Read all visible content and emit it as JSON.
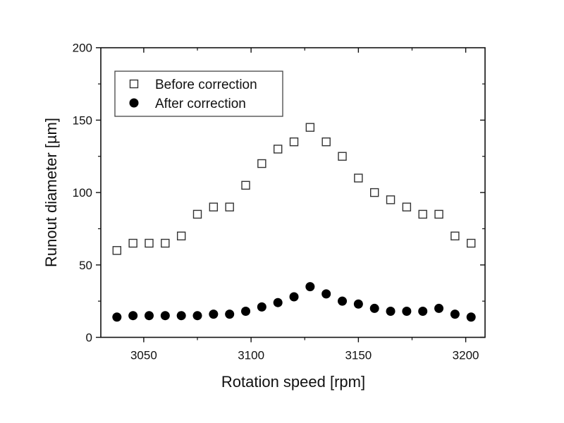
{
  "chart_data": {
    "type": "scatter",
    "title": "",
    "xlabel": "Rotation speed [rpm]",
    "ylabel": "Runout diameter [µm]",
    "xlim": [
      3030,
      3209
    ],
    "ylim": [
      0,
      200
    ],
    "xticks": [
      3050,
      3100,
      3150,
      3200
    ],
    "xtick_labels": [
      "3050",
      "3100",
      "3150",
      "3200"
    ],
    "xminor": [
      3075,
      3125,
      3175
    ],
    "yticks": [
      0,
      50,
      100,
      150,
      200
    ],
    "ytick_labels": [
      "0",
      "50",
      "100",
      "150",
      "200"
    ],
    "yminor": [
      25,
      75,
      125,
      175
    ],
    "grid": false,
    "legend": {
      "position": "top-left",
      "boxed": true
    },
    "x": [
      3037.5,
      3045,
      3052.5,
      3060,
      3067.5,
      3075,
      3082.5,
      3090,
      3097.5,
      3105,
      3112.5,
      3120,
      3127.5,
      3135,
      3142.5,
      3150,
      3157.5,
      3165,
      3172.5,
      3180,
      3187.5,
      3195,
      3202.5
    ],
    "series": [
      {
        "name": "Before correction",
        "marker": "open-square",
        "color": "#333333",
        "values": [
          60,
          65,
          65,
          65,
          70,
          85,
          90,
          90,
          105,
          120,
          130,
          135,
          145,
          135,
          125,
          110,
          100,
          95,
          90,
          85,
          85,
          70,
          65
        ]
      },
      {
        "name": "After correction",
        "marker": "filled-circle",
        "color": "#000000",
        "values": [
          14,
          15,
          15,
          15,
          15,
          15,
          16,
          16,
          18,
          21,
          24,
          28,
          35,
          30,
          25,
          23,
          20,
          18,
          18,
          18,
          20,
          16,
          14
        ]
      }
    ]
  }
}
